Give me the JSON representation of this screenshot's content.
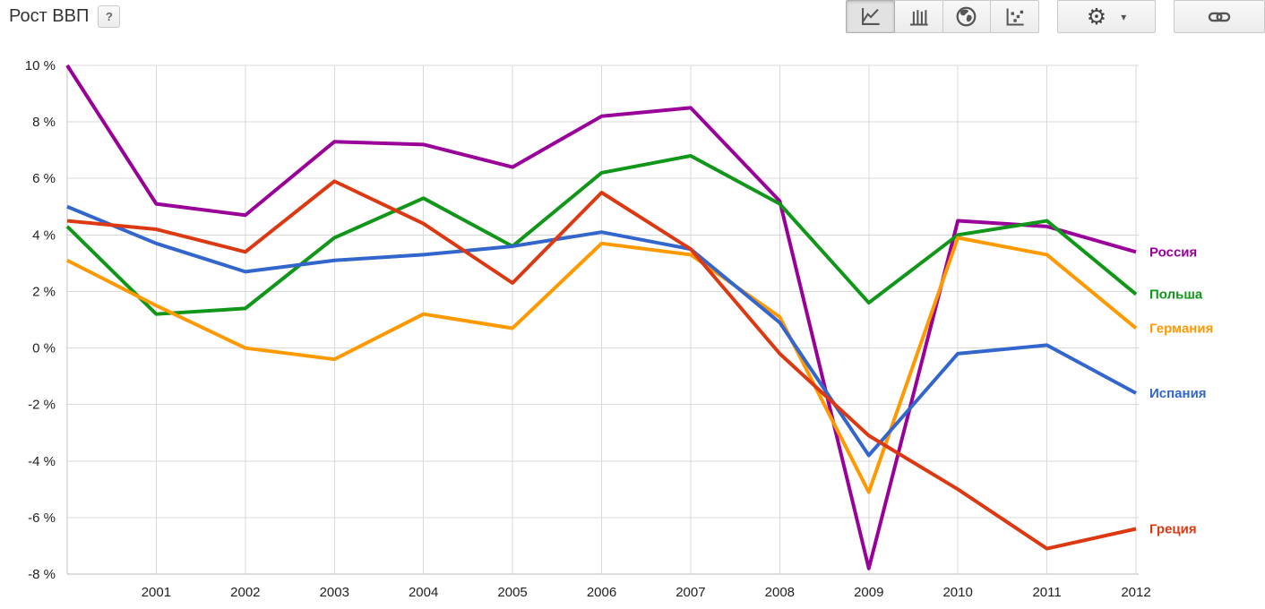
{
  "header": {
    "title": "Рост ВВП",
    "help_label": "?"
  },
  "toolbar": {
    "chart_type_buttons": [
      {
        "icon": "line-chart-icon",
        "selected": true
      },
      {
        "icon": "bar-chart-icon",
        "selected": false
      },
      {
        "icon": "globe-map-icon",
        "selected": false
      },
      {
        "icon": "scatter-chart-icon",
        "selected": false
      }
    ],
    "settings_button": {
      "icon": "gear-icon",
      "caret": "▾"
    },
    "share_link_button": {
      "icon": "link-icon"
    }
  },
  "chart_data": {
    "type": "line",
    "title": "Рост ВВП",
    "unit": "%",
    "grid": true,
    "x": [
      2000,
      2001,
      2002,
      2003,
      2004,
      2005,
      2006,
      2007,
      2008,
      2009,
      2010,
      2011,
      2012
    ],
    "x_tick_labels": [
      "2001",
      "2002",
      "2003",
      "2004",
      "2005",
      "2006",
      "2007",
      "2008",
      "2009",
      "2010",
      "2011",
      "2012"
    ],
    "ylim": [
      -8,
      10
    ],
    "y_ticks": [
      10,
      8,
      6,
      4,
      2,
      0,
      -2,
      -4,
      -6,
      -8
    ],
    "y_tick_labels": [
      "10 %",
      "8 %",
      "6 %",
      "4 %",
      "2 %",
      "0 %",
      "-2 %",
      "-4 %",
      "-6 %",
      "-8 %"
    ],
    "legend_position": "right-end-of-line",
    "series": [
      {
        "name": "Россия",
        "color": "#990099",
        "values": [
          10.0,
          5.1,
          4.7,
          7.3,
          7.2,
          6.4,
          8.2,
          8.5,
          5.2,
          -7.8,
          4.5,
          4.3,
          3.4
        ]
      },
      {
        "name": "Польша",
        "color": "#109618",
        "values": [
          4.3,
          1.2,
          1.4,
          3.9,
          5.3,
          3.6,
          6.2,
          6.8,
          5.1,
          1.6,
          4.0,
          4.5,
          1.9
        ]
      },
      {
        "name": "Германия",
        "color": "#FF9900",
        "values": [
          3.1,
          1.5,
          0.0,
          -0.4,
          1.2,
          0.7,
          3.7,
          3.3,
          1.1,
          -5.1,
          3.9,
          3.3,
          0.7
        ]
      },
      {
        "name": "Испания",
        "color": "#3366CC",
        "values": [
          5.0,
          3.7,
          2.7,
          3.1,
          3.3,
          3.6,
          4.1,
          3.5,
          0.9,
          -3.8,
          -0.2,
          0.1,
          -1.6
        ]
      },
      {
        "name": "Греция",
        "color": "#DC3912",
        "values": [
          4.5,
          4.2,
          3.4,
          5.9,
          4.4,
          2.3,
          5.5,
          3.5,
          -0.2,
          -3.1,
          -5.0,
          -7.1,
          -6.4
        ]
      }
    ]
  }
}
